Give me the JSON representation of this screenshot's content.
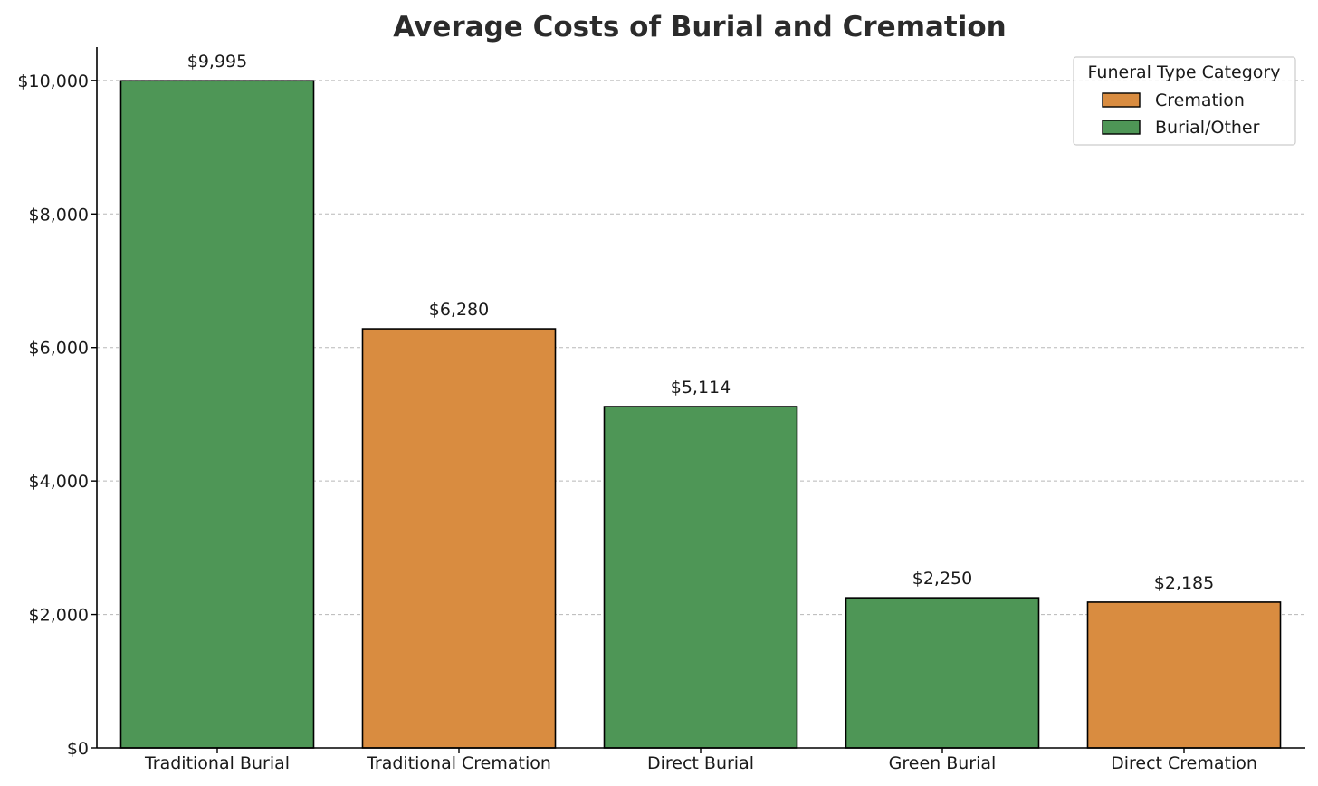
{
  "chart_data": {
    "type": "bar",
    "title": "Average Costs of Burial and Cremation",
    "xlabel": "",
    "ylabel": "",
    "categories": [
      "Traditional Burial",
      "Traditional Cremation",
      "Direct Burial",
      "Green Burial",
      "Direct Cremation"
    ],
    "values": [
      9995,
      6280,
      5114,
      2250,
      2185
    ],
    "value_labels": [
      "$9,995",
      "$6,280",
      "$5,114",
      "$2,250",
      "$2,185"
    ],
    "bar_category": [
      "Burial/Other",
      "Cremation",
      "Burial/Other",
      "Burial/Other",
      "Cremation"
    ],
    "ylim": [
      0,
      10500
    ],
    "yticks": [
      0,
      2000,
      4000,
      6000,
      8000,
      10000
    ],
    "ytick_labels": [
      "$0",
      "$2,000",
      "$4,000",
      "$6,000",
      "$8,000",
      "$10,000"
    ],
    "grid": "horizontal dashed",
    "legend": {
      "title": "Funeral Type Category",
      "placement": "top-right",
      "entries": [
        {
          "name": "Cremation",
          "color": "#d98c40"
        },
        {
          "name": "Burial/Other",
          "color": "#4e9656"
        }
      ]
    },
    "colors": {
      "Cremation": "#d98c40",
      "Burial/Other": "#4e9656"
    }
  }
}
